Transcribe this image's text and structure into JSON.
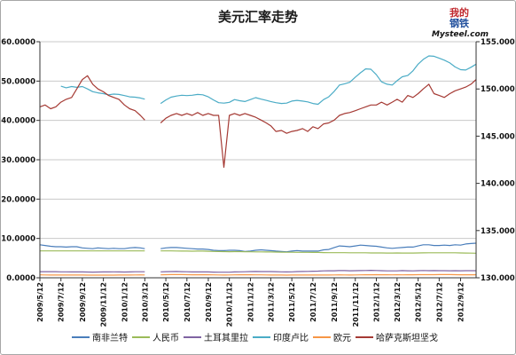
{
  "logo": {
    "line1": "我的",
    "line2": "钢铁",
    "site": "Mysteel.com"
  },
  "chart_data": {
    "type": "line",
    "title": "美元汇率走势",
    "xlabel": "",
    "ylabel": "",
    "grid": "horizontal",
    "legend": "bottom",
    "xlim": [
      "2009/5/12",
      "2012/10/27"
    ],
    "x_ticks": [
      "2009/5/12",
      "2009/7/12",
      "2009/9/12",
      "2009/11/12",
      "2010/1/12",
      "2010/3/12",
      "2010/5/12",
      "2010/7/12",
      "2010/9/12",
      "2010/11/12",
      "2011/1/12",
      "2011/3/12",
      "2011/5/12",
      "2011/7/12",
      "2011/9/12",
      "2011/11/12",
      "2012/1/12",
      "2012/3/12",
      "2012/5/12",
      "2012/7/12",
      "2012/9/12"
    ],
    "y_left": {
      "lim": [
        0,
        60
      ],
      "ticks": [
        "0.0000",
        "10.0000",
        "20.0000",
        "30.0000",
        "40.0000",
        "50.0000",
        "60.0000"
      ]
    },
    "y_right": {
      "lim": [
        130,
        155
      ],
      "ticks": [
        "130.000",
        "135.000",
        "140.000",
        "145.000",
        "150.000",
        "155.000"
      ]
    },
    "x": [
      "2009/5/12",
      "2009/5/27",
      "2009/6/12",
      "2009/6/27",
      "2009/7/12",
      "2009/7/27",
      "2009/8/12",
      "2009/8/27",
      "2009/9/12",
      "2009/9/27",
      "2009/10/12",
      "2009/10/27",
      "2009/11/12",
      "2009/11/27",
      "2009/12/12",
      "2009/12/27",
      "2010/1/12",
      "2010/1/27",
      "2010/2/12",
      "2010/2/27",
      "2010/3/12",
      "2010/3/27",
      "2010/4/12",
      "2010/4/27",
      "2010/5/12",
      "2010/5/27",
      "2010/6/12",
      "2010/6/27",
      "2010/7/12",
      "2010/7/27",
      "2010/8/12",
      "2010/8/27",
      "2010/9/12",
      "2010/9/27",
      "2010/10/12",
      "2010/10/27",
      "2010/11/12",
      "2010/11/27",
      "2010/12/12",
      "2010/12/27",
      "2011/1/12",
      "2011/1/27",
      "2011/2/12",
      "2011/2/27",
      "2011/3/12",
      "2011/3/27",
      "2011/4/12",
      "2011/4/27",
      "2011/5/12",
      "2011/5/27",
      "2011/6/12",
      "2011/6/27",
      "2011/7/12",
      "2011/7/27",
      "2011/8/12",
      "2011/8/27",
      "2011/9/12",
      "2011/9/27",
      "2011/10/12",
      "2011/10/27",
      "2011/11/12",
      "2011/11/27",
      "2011/12/12",
      "2011/12/27",
      "2012/1/12",
      "2012/1/27",
      "2012/2/12",
      "2012/2/27",
      "2012/3/12",
      "2012/3/27",
      "2012/4/12",
      "2012/4/27",
      "2012/5/12",
      "2012/5/27",
      "2012/6/12",
      "2012/6/27",
      "2012/7/12",
      "2012/7/27",
      "2012/8/12",
      "2012/8/27",
      "2012/9/12",
      "2012/9/27",
      "2012/10/12",
      "2012/10/27"
    ],
    "series": [
      {
        "name": "南非兰特",
        "axis": "left",
        "color": "#4a7ebb",
        "values": [
          8.4,
          8.2,
          8.0,
          7.9,
          7.9,
          7.8,
          7.9,
          7.9,
          7.6,
          7.5,
          7.4,
          7.6,
          7.5,
          7.4,
          7.5,
          7.4,
          7.4,
          7.6,
          7.7,
          7.6,
          7.4,
          null,
          null,
          7.4,
          7.6,
          7.7,
          7.7,
          7.6,
          7.5,
          7.4,
          7.3,
          7.3,
          7.2,
          7.0,
          6.9,
          6.9,
          7.0,
          7.0,
          6.9,
          6.7,
          6.8,
          7.0,
          7.1,
          7.0,
          6.9,
          6.8,
          6.7,
          6.6,
          6.8,
          6.9,
          6.8,
          6.8,
          6.8,
          6.8,
          7.1,
          7.2,
          7.7,
          8.1,
          8.0,
          7.9,
          8.1,
          8.3,
          8.2,
          8.1,
          8.0,
          7.8,
          7.6,
          7.5,
          7.6,
          7.7,
          7.8,
          7.8,
          8.1,
          8.4,
          8.4,
          8.2,
          8.2,
          8.3,
          8.2,
          8.4,
          8.3,
          8.6,
          8.7,
          8.8
        ]
      },
      {
        "name": "人民币",
        "axis": "left",
        "color": "#9bbb59",
        "values": [
          6.83,
          6.83,
          6.83,
          6.83,
          6.83,
          6.83,
          6.83,
          6.83,
          6.83,
          6.83,
          6.83,
          6.83,
          6.83,
          6.83,
          6.83,
          6.83,
          6.83,
          6.83,
          6.83,
          6.83,
          6.83,
          null,
          null,
          6.83,
          6.83,
          6.83,
          6.81,
          6.78,
          6.78,
          6.77,
          6.78,
          6.8,
          6.75,
          6.7,
          6.67,
          6.66,
          6.64,
          6.65,
          6.66,
          6.62,
          6.6,
          6.59,
          6.58,
          6.57,
          6.56,
          6.54,
          6.53,
          6.5,
          6.49,
          6.48,
          6.47,
          6.47,
          6.45,
          6.44,
          6.4,
          6.39,
          6.38,
          6.39,
          6.38,
          6.36,
          6.35,
          6.37,
          6.36,
          6.31,
          6.31,
          6.32,
          6.3,
          6.29,
          6.31,
          6.3,
          6.3,
          6.3,
          6.32,
          6.33,
          6.36,
          6.37,
          6.37,
          6.36,
          6.36,
          6.35,
          6.32,
          6.29,
          6.27,
          6.25
        ]
      },
      {
        "name": "土耳其里拉",
        "axis": "left",
        "color": "#8064a2",
        "values": [
          1.56,
          1.56,
          1.55,
          1.55,
          1.52,
          1.51,
          1.48,
          1.49,
          1.5,
          1.46,
          1.45,
          1.47,
          1.49,
          1.5,
          1.51,
          1.49,
          1.47,
          1.5,
          1.53,
          1.54,
          1.53,
          null,
          null,
          1.52,
          1.55,
          1.58,
          1.6,
          1.55,
          1.53,
          1.5,
          1.49,
          1.52,
          1.5,
          1.44,
          1.41,
          1.42,
          1.43,
          1.5,
          1.51,
          1.53,
          1.57,
          1.6,
          1.58,
          1.59,
          1.59,
          1.55,
          1.52,
          1.5,
          1.52,
          1.58,
          1.61,
          1.62,
          1.66,
          1.7,
          1.75,
          1.78,
          1.78,
          1.84,
          1.83,
          1.79,
          1.8,
          1.83,
          1.86,
          1.9,
          1.85,
          1.8,
          1.76,
          1.76,
          1.77,
          1.82,
          1.79,
          1.76,
          1.81,
          1.86,
          1.81,
          1.82,
          1.8,
          1.81,
          1.79,
          1.8,
          1.79,
          1.8,
          1.8,
          1.8
        ]
      },
      {
        "name": "印度卢比",
        "axis": "left",
        "color": "#4bacc6",
        "values": [
          null,
          null,
          null,
          null,
          48.7,
          48.3,
          48.6,
          48.4,
          48.6,
          48.0,
          47.3,
          47.0,
          46.8,
          46.5,
          46.7,
          46.6,
          46.3,
          46.0,
          45.9,
          45.7,
          45.4,
          null,
          null,
          44.3,
          45.2,
          45.9,
          46.2,
          46.4,
          46.3,
          46.4,
          46.6,
          46.5,
          46.0,
          45.2,
          44.5,
          44.4,
          44.6,
          45.3,
          45.0,
          44.8,
          45.3,
          45.8,
          45.4,
          45.1,
          44.8,
          44.5,
          44.3,
          44.4,
          44.9,
          45.1,
          44.9,
          44.7,
          44.3,
          44.1,
          45.3,
          46.0,
          47.4,
          49.0,
          49.3,
          49.7,
          51.0,
          52.1,
          53.1,
          53.0,
          51.6,
          49.8,
          49.2,
          49.0,
          50.1,
          51.1,
          51.4,
          52.6,
          54.3,
          55.5,
          56.4,
          56.3,
          55.8,
          55.3,
          54.6,
          53.6,
          52.9,
          52.8,
          53.5,
          54.3
        ]
      },
      {
        "name": "欧元",
        "axis": "left",
        "color": "#f79646",
        "values": [
          0.74,
          0.72,
          0.71,
          0.71,
          0.71,
          0.71,
          0.7,
          0.7,
          0.69,
          0.68,
          0.67,
          0.67,
          0.67,
          0.67,
          0.68,
          0.7,
          0.69,
          0.71,
          0.73,
          0.74,
          0.73,
          null,
          null,
          0.75,
          0.79,
          0.82,
          0.82,
          0.81,
          0.79,
          0.77,
          0.77,
          0.79,
          0.77,
          0.74,
          0.72,
          0.71,
          0.73,
          0.75,
          0.76,
          0.76,
          0.77,
          0.74,
          0.74,
          0.73,
          0.71,
          0.71,
          0.7,
          0.68,
          0.7,
          0.71,
          0.69,
          0.69,
          0.7,
          0.69,
          0.69,
          0.7,
          0.72,
          0.74,
          0.73,
          0.71,
          0.73,
          0.75,
          0.76,
          0.77,
          0.79,
          0.77,
          0.76,
          0.75,
          0.76,
          0.75,
          0.76,
          0.76,
          0.78,
          0.8,
          0.8,
          0.8,
          0.82,
          0.81,
          0.81,
          0.8,
          0.77,
          0.77,
          0.77,
          0.77
        ]
      },
      {
        "name": "哈萨克斯坦坚戈",
        "axis": "right",
        "color": "#a53a34",
        "values": [
          148.1,
          148.3,
          147.9,
          148.1,
          148.6,
          148.9,
          149.1,
          150.0,
          151.0,
          151.4,
          150.5,
          150.0,
          149.7,
          149.3,
          149.1,
          148.9,
          148.3,
          147.9,
          147.7,
          147.2,
          146.7,
          null,
          null,
          146.4,
          146.9,
          147.2,
          147.4,
          147.2,
          147.4,
          147.2,
          147.5,
          147.2,
          147.4,
          147.2,
          147.2,
          141.7,
          147.2,
          147.4,
          147.2,
          147.4,
          147.2,
          147.0,
          146.7,
          146.4,
          146.1,
          145.5,
          145.6,
          145.3,
          145.5,
          145.6,
          145.8,
          145.5,
          146.0,
          145.8,
          146.3,
          146.4,
          146.7,
          147.2,
          147.4,
          147.5,
          147.7,
          147.9,
          148.1,
          148.3,
          148.3,
          148.6,
          148.3,
          148.6,
          148.9,
          148.6,
          149.3,
          149.1,
          149.5,
          150.0,
          150.5,
          149.5,
          149.3,
          149.1,
          149.5,
          149.8,
          150.0,
          150.2,
          150.5,
          151.0
        ]
      }
    ]
  }
}
